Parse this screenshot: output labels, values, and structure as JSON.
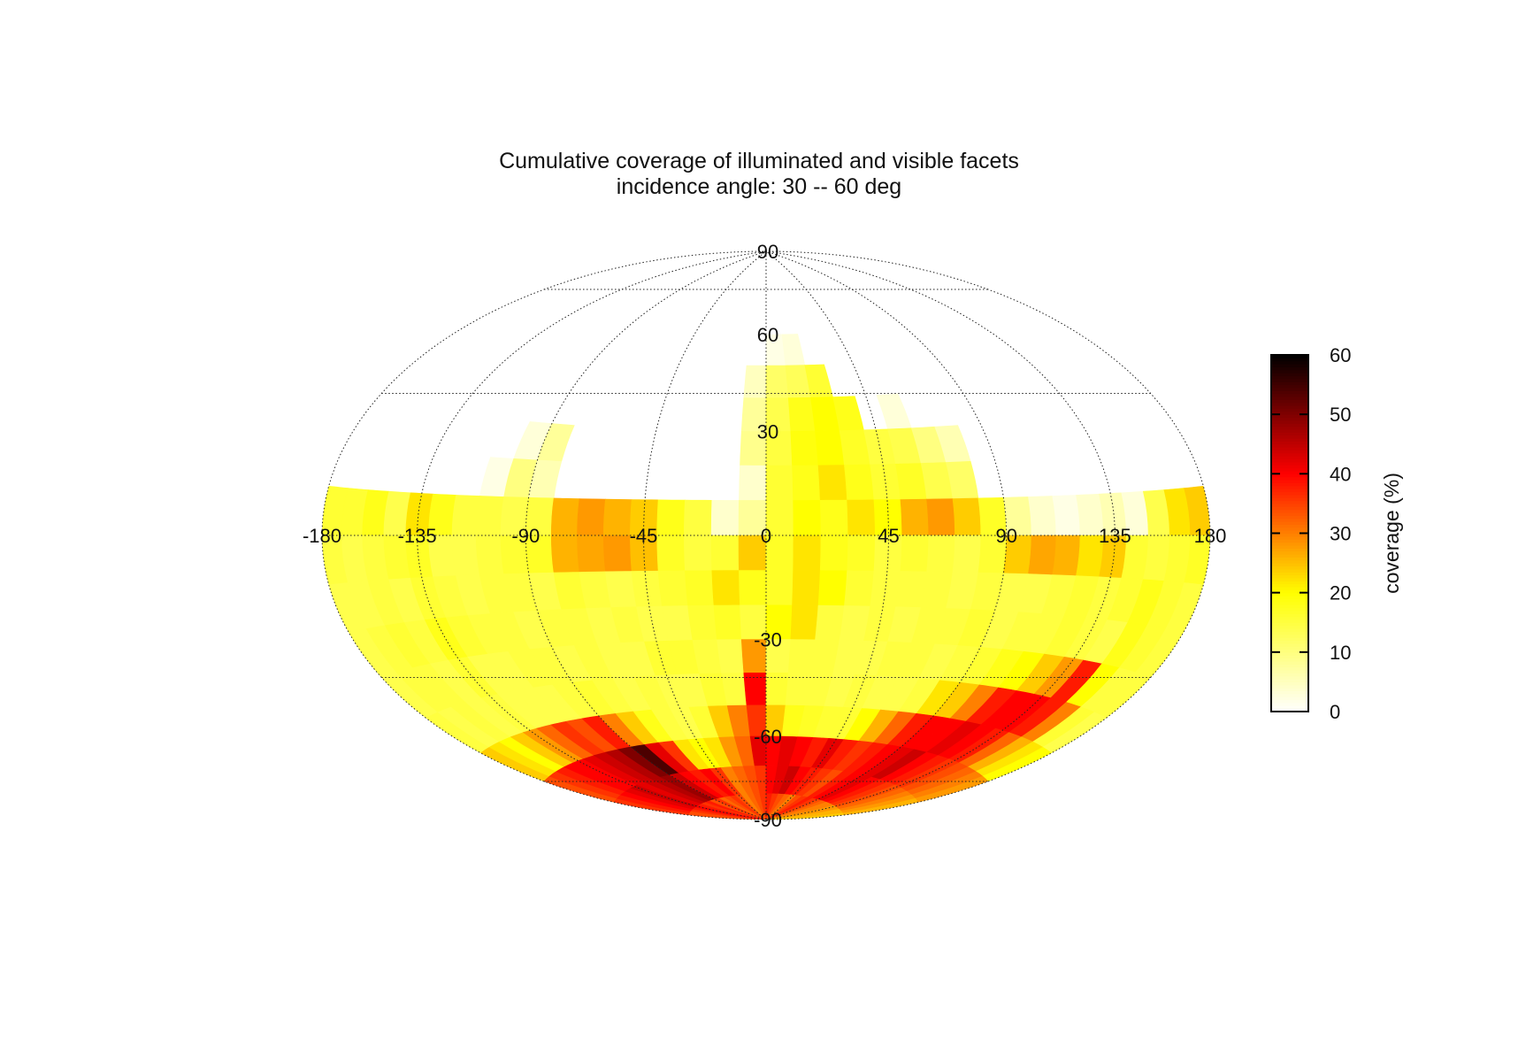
{
  "chart_data": {
    "type": "heatmap",
    "projection": "hammer",
    "title": "Cumulative coverage of illuminated and visible facets",
    "subtitle": "incidence angle: 30 -- 60 deg",
    "xlabel": "",
    "ylabel": "",
    "xlim": [
      -180,
      180
    ],
    "ylim": [
      -90,
      90
    ],
    "grid": true,
    "longitude_ticks": [
      -180,
      -135,
      -90,
      -45,
      0,
      45,
      90,
      135,
      180
    ],
    "latitude_ticks": [
      90,
      60,
      30,
      -30,
      -60,
      -90
    ],
    "colorbar": {
      "label": "coverage (%)",
      "range": [
        0,
        60
      ],
      "ticks": [
        0,
        10,
        20,
        30,
        40,
        50,
        60
      ],
      "placement": "right"
    },
    "longitude_edges": [
      -180,
      -170,
      -160,
      -150,
      -140,
      -130,
      -120,
      -110,
      -100,
      -90,
      -80,
      -70,
      -60,
      -50,
      -40,
      -30,
      -20,
      -10,
      0,
      10,
      20,
      30,
      40,
      50,
      60,
      70,
      80,
      90,
      100,
      110,
      120,
      130,
      140,
      150,
      160,
      170,
      180
    ],
    "latitude_edges": [
      60,
      50,
      40,
      30,
      20,
      10,
      0,
      -10,
      -20,
      -30,
      -40,
      -50,
      -60,
      -70,
      -80,
      -90
    ],
    "coverage": [
      [
        0,
        0,
        0,
        0,
        0,
        0,
        0,
        0,
        0,
        0,
        0,
        0,
        0,
        0,
        0,
        0,
        0,
        0,
        2,
        3,
        0,
        0,
        0,
        0,
        0,
        0,
        0,
        0,
        0,
        0,
        0,
        0,
        0,
        0,
        0,
        0
      ],
      [
        0,
        0,
        0,
        0,
        0,
        0,
        0,
        0,
        0,
        0,
        0,
        0,
        0,
        0,
        0,
        0,
        0,
        5,
        12,
        13,
        16,
        0,
        0,
        0,
        0,
        0,
        0,
        0,
        0,
        0,
        0,
        0,
        0,
        0,
        0,
        0
      ],
      [
        0,
        0,
        0,
        0,
        0,
        0,
        0,
        0,
        0,
        0,
        0,
        0,
        0,
        0,
        0,
        0,
        0,
        8,
        14,
        18,
        20,
        18,
        0,
        3,
        0,
        0,
        0,
        0,
        0,
        0,
        0,
        0,
        0,
        0,
        0,
        0
      ],
      [
        0,
        0,
        0,
        0,
        0,
        0,
        0,
        0,
        3,
        8,
        0,
        0,
        0,
        0,
        0,
        0,
        0,
        9,
        15,
        19,
        20,
        17,
        15,
        14,
        10,
        6,
        0,
        0,
        0,
        0,
        0,
        0,
        0,
        0,
        0,
        0
      ],
      [
        0,
        0,
        0,
        0,
        0,
        0,
        0,
        2,
        10,
        6,
        0,
        0,
        0,
        0,
        0,
        0,
        0,
        4,
        16,
        18,
        22,
        18,
        16,
        17,
        14,
        12,
        0,
        0,
        0,
        0,
        0,
        0,
        0,
        0,
        0,
        0
      ],
      [
        16,
        16,
        18,
        14,
        22,
        18,
        15,
        15,
        14,
        15,
        26,
        28,
        26,
        24,
        18,
        15,
        4,
        8,
        16,
        20,
        18,
        22,
        20,
        26,
        28,
        24,
        17,
        8,
        4,
        2,
        4,
        6,
        3,
        14,
        22,
        24
      ],
      [
        15,
        14,
        15,
        16,
        17,
        14,
        14,
        15,
        16,
        17,
        26,
        27,
        28,
        25,
        17,
        15,
        16,
        24,
        17,
        22,
        18,
        17,
        15,
        16,
        15,
        14,
        16,
        24,
        27,
        26,
        22,
        24,
        16,
        15,
        16,
        17
      ],
      [
        14,
        14,
        15,
        14,
        16,
        15,
        14,
        15,
        15,
        14,
        16,
        15,
        14,
        15,
        16,
        17,
        22,
        18,
        17,
        22,
        20,
        16,
        15,
        15,
        15,
        14,
        15,
        14,
        14,
        15,
        16,
        15,
        16,
        18,
        16,
        15
      ],
      [
        14,
        15,
        16,
        15,
        18,
        16,
        15,
        15,
        14,
        15,
        15,
        14,
        15,
        14,
        14,
        16,
        17,
        15,
        20,
        22,
        15,
        14,
        15,
        14,
        15,
        15,
        16,
        14,
        15,
        15,
        16,
        15,
        14,
        18,
        16,
        15
      ],
      [
        14,
        15,
        15,
        14,
        16,
        14,
        14,
        15,
        15,
        14,
        15,
        14,
        14,
        16,
        16,
        15,
        14,
        28,
        14,
        15,
        15,
        14,
        14,
        15,
        15,
        14,
        15,
        16,
        18,
        20,
        24,
        28,
        38,
        20,
        15,
        15
      ],
      [
        15,
        14,
        15,
        14,
        15,
        14,
        14,
        14,
        15,
        16,
        15,
        14,
        15,
        14,
        14,
        16,
        15,
        40,
        16,
        15,
        15,
        14,
        15,
        14,
        14,
        15,
        22,
        24,
        30,
        38,
        40,
        40,
        38,
        30,
        16,
        14
      ],
      [
        24,
        22,
        20,
        24,
        28,
        32,
        36,
        34,
        38,
        30,
        24,
        18,
        15,
        14,
        16,
        24,
        30,
        36,
        24,
        18,
        17,
        16,
        16,
        20,
        26,
        32,
        38,
        40,
        40,
        42,
        40,
        38,
        32,
        26,
        22,
        20
      ],
      [
        34,
        36,
        38,
        40,
        40,
        42,
        44,
        46,
        50,
        54,
        42,
        36,
        22,
        20,
        22,
        28,
        32,
        42,
        40,
        42,
        40,
        38,
        42,
        38,
        36,
        38,
        40,
        42,
        44,
        40,
        38,
        36,
        34,
        32,
        30,
        28
      ],
      [
        36,
        38,
        40,
        42,
        44,
        42,
        44,
        46,
        48,
        44,
        40,
        38,
        40,
        36,
        30,
        32,
        34,
        36,
        40,
        42,
        44,
        40,
        38,
        36,
        34,
        38,
        40,
        42,
        40,
        38,
        36,
        34,
        32,
        30,
        28,
        26
      ],
      [
        34,
        34,
        36,
        38,
        40,
        38,
        36,
        38,
        34,
        36,
        32,
        34,
        36,
        34,
        30,
        32,
        34,
        36,
        38,
        36,
        34,
        32,
        30,
        34,
        36,
        38,
        36,
        34,
        32,
        30,
        30,
        28,
        28,
        26,
        26,
        24
      ]
    ]
  }
}
